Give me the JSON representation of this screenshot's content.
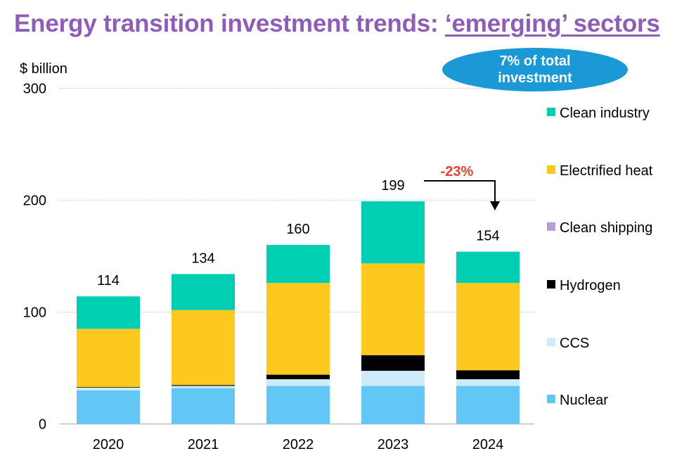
{
  "title_prefix": "Energy transition investment trends: ",
  "title_emphasis": "‘emerging’ sectors",
  "callout": {
    "line1": "7% of total",
    "line2": "investment",
    "color": "#1b99d6"
  },
  "change_annotation": {
    "text": "-23%",
    "color": "#e8412c"
  },
  "chart_data": {
    "type": "bar",
    "stacked": true,
    "ylabel": "$ billion",
    "ylim": [
      0,
      300
    ],
    "yticks": [
      0,
      100,
      200,
      300
    ],
    "grid": true,
    "legend_position": "right",
    "categories": [
      "2020",
      "2021",
      "2022",
      "2023",
      "2024"
    ],
    "totals": [
      114,
      134,
      160,
      199,
      154
    ],
    "series": [
      {
        "name": "Nuclear",
        "color": "#62c7f4",
        "values": [
          30,
          32,
          34,
          34,
          34
        ]
      },
      {
        "name": "CCS",
        "color": "#cdebf9",
        "values": [
          2.5,
          2,
          6,
          13.5,
          6
        ]
      },
      {
        "name": "Hydrogen",
        "color": "#000000",
        "values": [
          0.5,
          0.8,
          4,
          14,
          8
        ]
      },
      {
        "name": "Clean shipping",
        "color": "#b39ddb",
        "values": [
          0,
          0,
          0,
          0,
          0
        ]
      },
      {
        "name": "Electrified heat",
        "color": "#fdc91e",
        "values": [
          52,
          67,
          82,
          82,
          78
        ]
      },
      {
        "name": "Clean industry",
        "color": "#00cfb3",
        "values": [
          29,
          32.2,
          34,
          55.5,
          28
        ]
      }
    ]
  }
}
